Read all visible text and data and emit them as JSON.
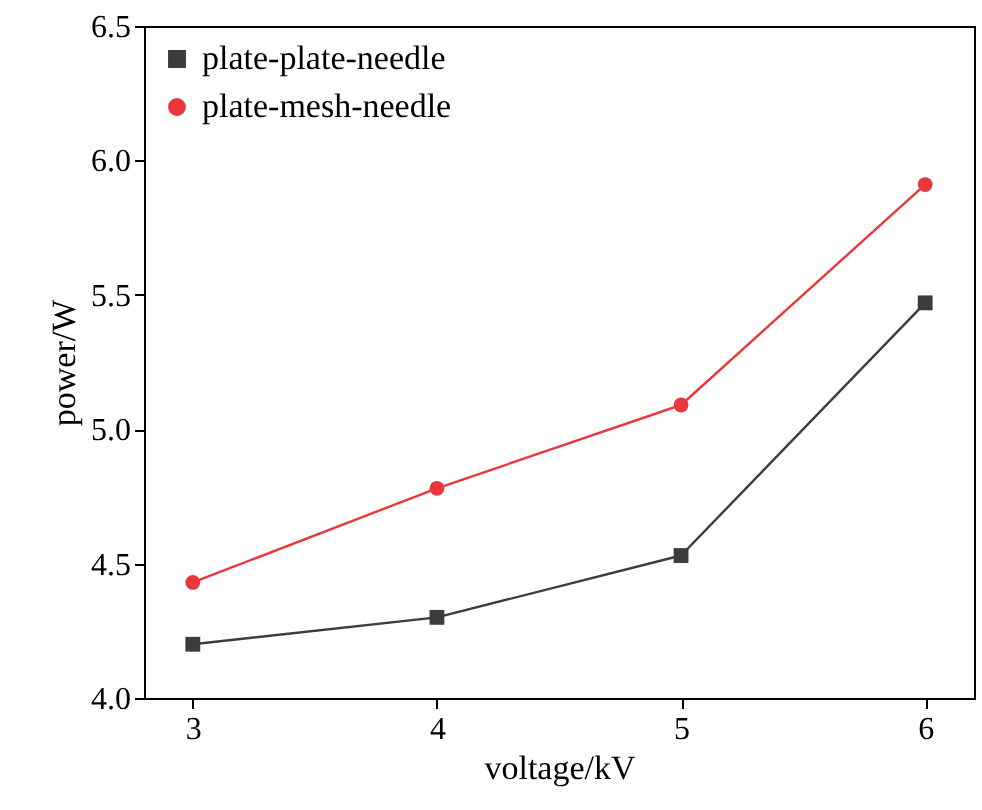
{
  "chart_data": {
    "type": "line",
    "xlabel": "voltage/kV",
    "ylabel": "power/W",
    "x": [
      3,
      4,
      5,
      6
    ],
    "series": [
      {
        "name": "plate-plate-needle",
        "color": "#3c3c3c",
        "marker": "square",
        "values": [
          4.2,
          4.3,
          4.53,
          5.47
        ]
      },
      {
        "name": "plate-mesh-needle",
        "color": "#e8383d",
        "marker": "circle",
        "values": [
          4.43,
          4.78,
          5.09,
          5.91
        ]
      }
    ],
    "xlim": [
      2.8,
      6.2
    ],
    "xticks": [
      3,
      4,
      5,
      6
    ],
    "ylim": [
      4.0,
      6.5
    ],
    "yticks": [
      {
        "value": 4,
        "label": "4.0"
      },
      {
        "value": 4.5,
        "label": "4.5"
      },
      {
        "value": 5,
        "label": "5.0"
      },
      {
        "value": 5.5,
        "label": "5.5"
      },
      {
        "value": 6,
        "label": "6.0"
      },
      {
        "value": 6.5,
        "label": "6.5"
      }
    ],
    "grid": false,
    "legend": "top left",
    "line_style": "solid"
  }
}
